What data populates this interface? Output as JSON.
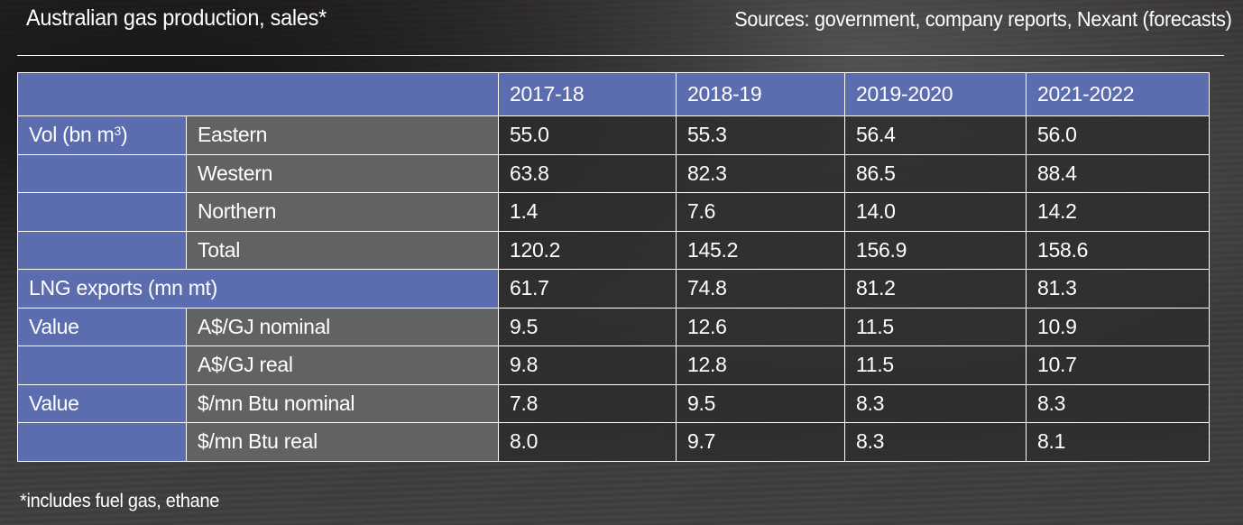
{
  "header": {
    "title": "Australian gas production, sales*",
    "sources": "Sources: government, company reports, Nexant (forecasts)"
  },
  "table": {
    "columns": [
      "2017-18",
      "2018-19",
      "2019-2020",
      "2021-2022"
    ],
    "rows": [
      {
        "group": "Vol (bn m",
        "group_sup": "3",
        "group_suffix": ")",
        "label": "Eastern",
        "values": [
          "55.0",
          "55.3",
          "56.4",
          "56.0"
        ]
      },
      {
        "group": "",
        "label": "Western",
        "values": [
          "63.8",
          "82.3",
          "86.5",
          "88.4"
        ]
      },
      {
        "group": "",
        "label": "Northern",
        "values": [
          "1.4",
          "7.6",
          "14.0",
          "14.2"
        ]
      },
      {
        "group": "",
        "label": "Total",
        "values": [
          "120.2",
          "145.2",
          "156.9",
          "158.6"
        ]
      },
      {
        "group": "LNG exports (mn mt)",
        "label": "",
        "values": [
          "61.7",
          "74.8",
          "81.2",
          "81.3"
        ]
      },
      {
        "group": "Value",
        "label": "A$/GJ nominal",
        "values": [
          "9.5",
          "12.6",
          "11.5",
          "10.9"
        ]
      },
      {
        "group": "",
        "label": "A$/GJ real",
        "values": [
          "9.8",
          "12.8",
          "11.5",
          "10.7"
        ]
      },
      {
        "group": "Value",
        "label": "$/mn Btu nominal",
        "values": [
          "7.8",
          "9.5",
          "8.3",
          "8.3"
        ]
      },
      {
        "group": "",
        "label": "$/mn Btu real",
        "values": [
          "8.0",
          "9.7",
          "8.3",
          "8.1"
        ]
      }
    ]
  },
  "footnote": "*includes fuel gas, ethane",
  "colors": {
    "header_blue": "#5b6caf",
    "label_grey": "#616263",
    "border": "#ffffff"
  }
}
